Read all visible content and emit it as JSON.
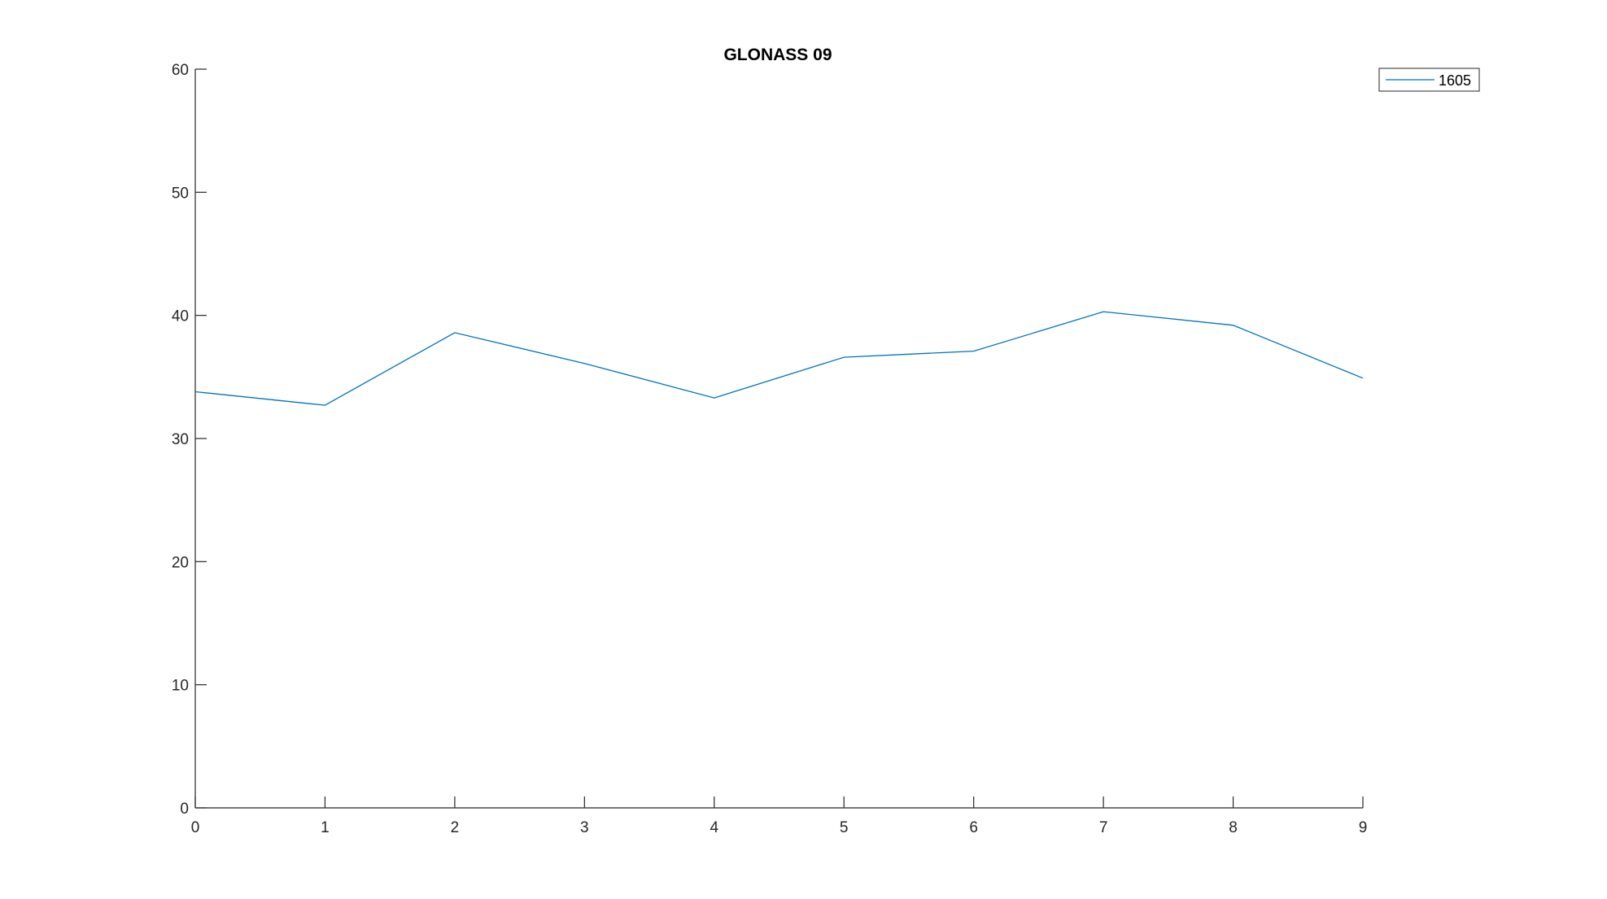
{
  "chart_data": {
    "type": "line",
    "title": "GLONASS 09",
    "xlabel": "",
    "ylabel": "",
    "xlim": [
      0,
      9
    ],
    "ylim": [
      0,
      60
    ],
    "xticks": [
      0,
      1,
      2,
      3,
      4,
      5,
      6,
      7,
      8,
      9
    ],
    "yticks": [
      0,
      10,
      20,
      30,
      40,
      50,
      60
    ],
    "grid": false,
    "legend_position": "top-right",
    "series": [
      {
        "name": "1605",
        "color": "#0072BD",
        "x": [
          0,
          1,
          2,
          3,
          4,
          5,
          6,
          7,
          8,
          9
        ],
        "y": [
          33.8,
          32.7,
          38.6,
          36.1,
          33.3,
          36.6,
          37.1,
          40.3,
          39.2,
          34.9
        ]
      }
    ]
  }
}
